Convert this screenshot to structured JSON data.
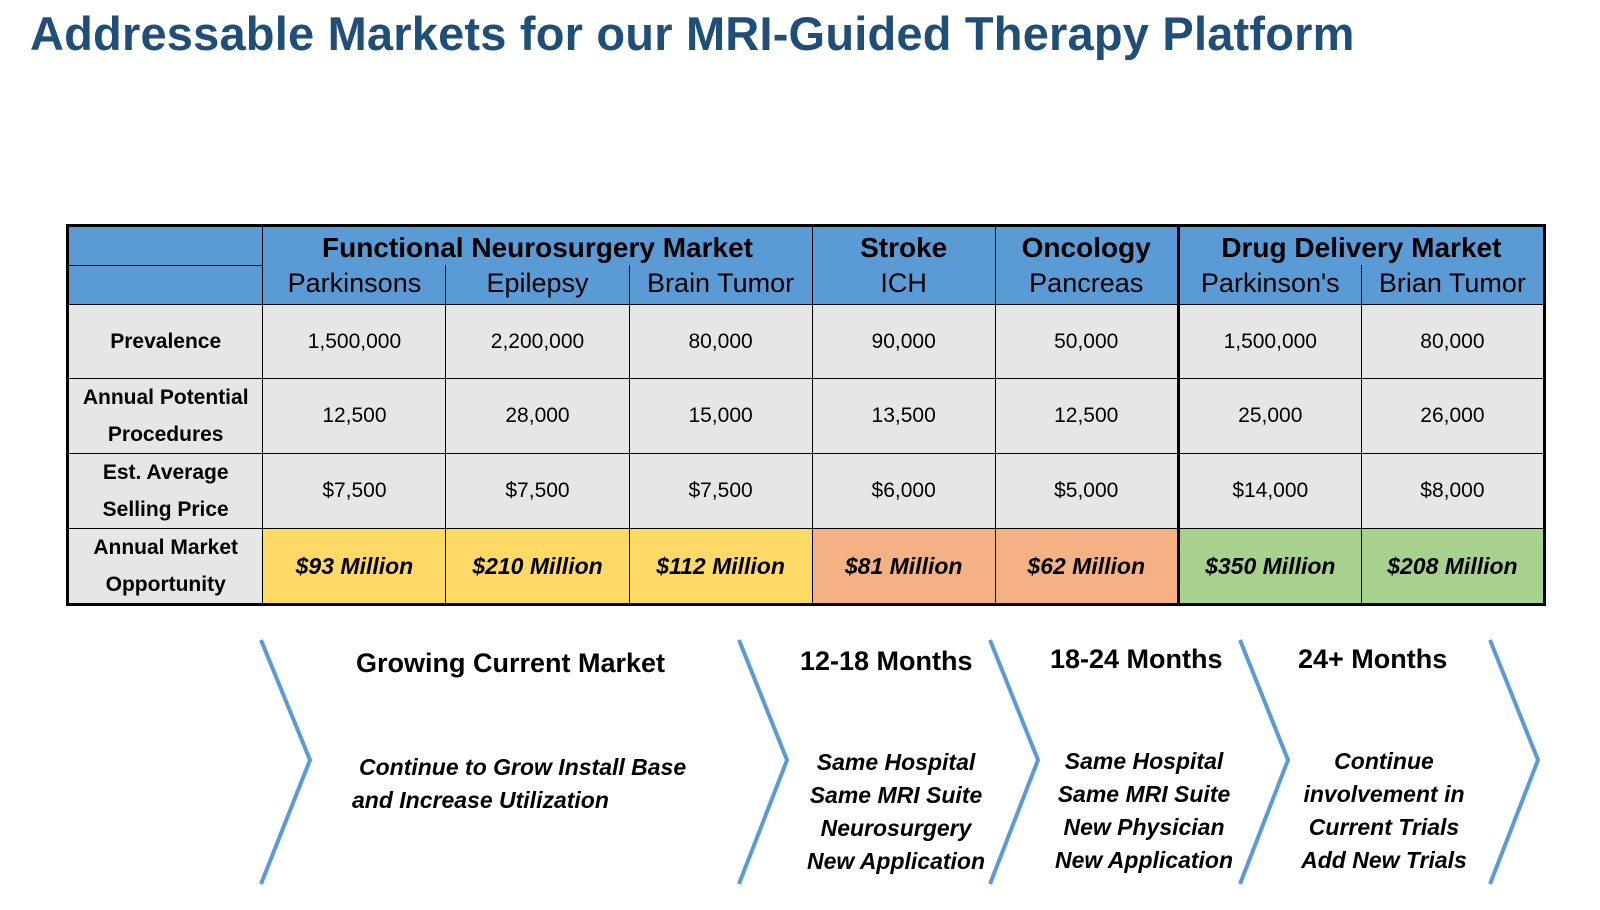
{
  "title": "Addressable Markets for our MRI-Guided Therapy Platform",
  "table": {
    "groups": {
      "functional": "Functional Neurosurgery Market",
      "stroke": "Stroke",
      "oncology": "Oncology",
      "drug": "Drug Delivery Market"
    },
    "columns": [
      "Parkinsons",
      "Epilepsy",
      "Brain Tumor",
      "ICH",
      "Pancreas",
      "Parkinson's",
      "Brian Tumor"
    ],
    "rows": [
      {
        "label_line1": "Prevalence",
        "label_line2": "",
        "values": [
          "1,500,000",
          "2,200,000",
          "80,000",
          "90,000",
          "50,000",
          "1,500,000",
          "80,000"
        ]
      },
      {
        "label_line1": "Annual Potential",
        "label_line2": "Procedures",
        "values": [
          "12,500",
          "28,000",
          "15,000",
          "13,500",
          "12,500",
          "25,000",
          "26,000"
        ]
      },
      {
        "label_line1": "Est. Average",
        "label_line2": "Selling Price",
        "values": [
          "$7,500",
          "$7,500",
          "$7,500",
          "$6,000",
          "$5,000",
          "$14,000",
          "$8,000"
        ]
      }
    ],
    "opportunity": {
      "label_line1": "Annual Market",
      "label_line2": "Opportunity",
      "values": [
        "$93 Million",
        "$210 Million",
        "$112 Million",
        "$81 Million",
        "$62 Million",
        "$350 Million",
        "$208 Million"
      ],
      "colors": [
        "#ffd966",
        "#ffd966",
        "#ffd966",
        "#f4b183",
        "#f4b183",
        "#a9d18e",
        "#a9d18e"
      ]
    }
  },
  "timeline": {
    "chevron_color": "#5b9bd5",
    "phases": [
      {
        "title": "Growing Current Market",
        "lines": [
          "Continue to Grow Install Base",
          "and Increase Utilization"
        ]
      },
      {
        "title": "12-18 Months",
        "lines": [
          "Same Hospital",
          "Same MRI Suite",
          "Neurosurgery",
          "New Application"
        ]
      },
      {
        "title": "18-24 Months",
        "lines": [
          "Same Hospital",
          "Same MRI Suite",
          "New Physician",
          "New Application"
        ]
      },
      {
        "title": "24+ Months",
        "lines": [
          "Continue",
          "involvement in",
          "Current Trials",
          "Add New Trials"
        ]
      }
    ]
  }
}
